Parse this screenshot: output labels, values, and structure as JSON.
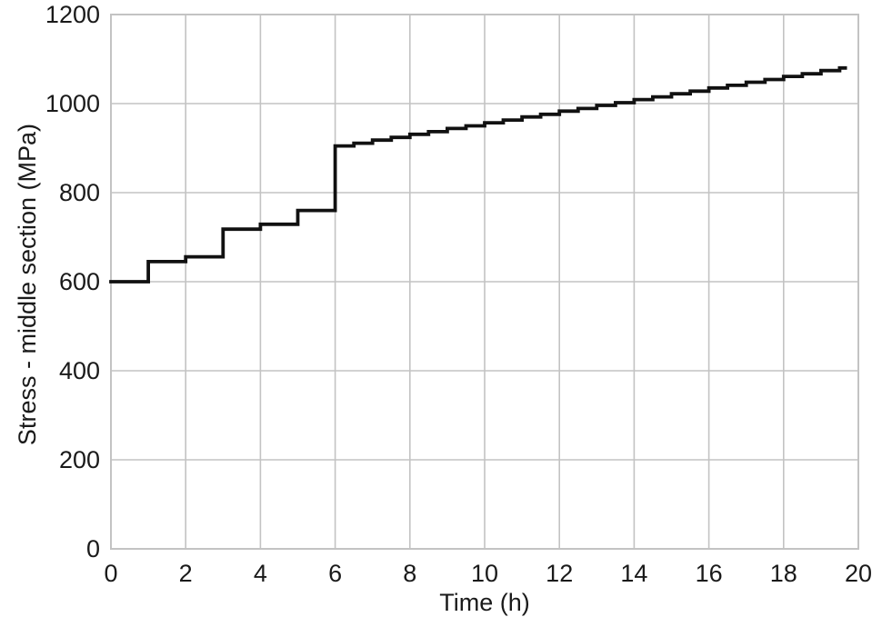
{
  "chart_data": {
    "type": "line",
    "subtype": "step-after",
    "title": "",
    "xlabel": "Time (h)",
    "ylabel": "Stress - middle section (MPa)",
    "xlim": [
      0,
      20
    ],
    "ylim": [
      0,
      1200
    ],
    "xticks": [
      0,
      2,
      4,
      6,
      8,
      10,
      12,
      14,
      16,
      18,
      20
    ],
    "yticks": [
      0,
      200,
      400,
      600,
      800,
      1000,
      1200
    ],
    "grid": true,
    "legend": "none",
    "colors": {
      "line": "#111111",
      "grid": "#c3c3c3",
      "text": "#1a1a1a",
      "background": "#ffffff"
    },
    "series": [
      {
        "name": "stress-middle-section",
        "points": [
          [
            0,
            600
          ],
          [
            1,
            645
          ],
          [
            2,
            656
          ],
          [
            3,
            718
          ],
          [
            4,
            729
          ],
          [
            5,
            760
          ],
          [
            6,
            905
          ],
          [
            6.5,
            911
          ],
          [
            7,
            918
          ],
          [
            7.5,
            924
          ],
          [
            8,
            931
          ],
          [
            8.5,
            937
          ],
          [
            9,
            944
          ],
          [
            9.5,
            950
          ],
          [
            10,
            957
          ],
          [
            10.5,
            963
          ],
          [
            11,
            970
          ],
          [
            11.5,
            976
          ],
          [
            12,
            983
          ],
          [
            12.5,
            989
          ],
          [
            13,
            996
          ],
          [
            13.5,
            1002
          ],
          [
            14,
            1009
          ],
          [
            14.5,
            1015
          ],
          [
            15,
            1022
          ],
          [
            15.5,
            1028
          ],
          [
            16,
            1035
          ],
          [
            16.5,
            1041
          ],
          [
            17,
            1048
          ],
          [
            17.5,
            1054
          ],
          [
            18,
            1061
          ],
          [
            18.5,
            1067
          ],
          [
            19,
            1074
          ],
          [
            19.5,
            1080
          ],
          [
            19.65,
            1080
          ]
        ]
      }
    ]
  }
}
